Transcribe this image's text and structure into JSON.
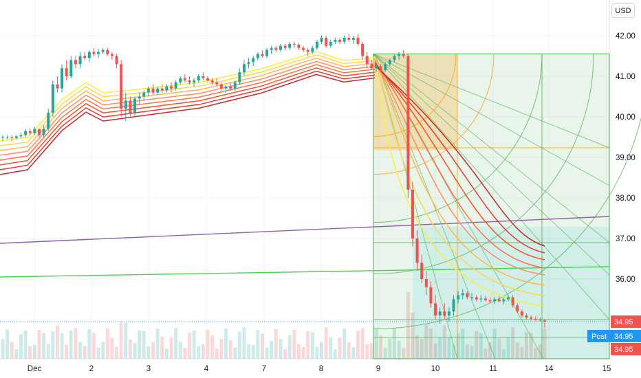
{
  "currency": "USD",
  "post_label": "Post",
  "colors": {
    "up": "#26a69a",
    "down": "#ef5350",
    "purple_line": "#8e5fa8",
    "green_line": "#47d34d",
    "post_tag": "#2196f3",
    "price_tag": "#ef5350"
  },
  "chart_data": {
    "type": "candlestick",
    "y_range": [
      33.7,
      42.6
    ],
    "y_ticks": [
      "42.00",
      "41.00",
      "40.00",
      "39.00",
      "38.00",
      "37.00",
      "36.00"
    ],
    "x_ticks": [
      "Dec",
      "2",
      "3",
      "4",
      "7",
      "8",
      "9",
      "10",
      "11",
      "14",
      "15"
    ],
    "price_tags": [
      "34.95",
      "34.95",
      "34.95"
    ],
    "last_price": 34.95,
    "price_candles": [
      [
        39.5,
        39.55,
        39.4,
        39.5
      ],
      [
        39.5,
        39.55,
        39.45,
        39.5
      ],
      [
        39.5,
        39.55,
        39.4,
        39.48
      ],
      [
        39.48,
        39.55,
        39.45,
        39.52
      ],
      [
        39.52,
        39.6,
        39.48,
        39.55
      ],
      [
        39.55,
        39.7,
        39.5,
        39.65
      ],
      [
        39.65,
        39.72,
        39.55,
        39.6
      ],
      [
        39.6,
        39.75,
        39.55,
        39.7
      ],
      [
        39.7,
        39.68,
        39.5,
        39.55
      ],
      [
        39.55,
        39.8,
        39.5,
        39.7
      ],
      [
        39.7,
        40.2,
        39.65,
        40.1
      ],
      [
        40.1,
        40.9,
        40.0,
        40.8
      ],
      [
        40.8,
        41.0,
        40.6,
        40.7
      ],
      [
        40.7,
        41.3,
        40.6,
        41.2
      ],
      [
        41.2,
        41.4,
        40.9,
        41.0
      ],
      [
        41.0,
        41.5,
        40.95,
        41.4
      ],
      [
        41.4,
        41.5,
        41.2,
        41.3
      ],
      [
        41.3,
        41.6,
        41.2,
        41.5
      ],
      [
        41.5,
        41.6,
        41.4,
        41.45
      ],
      [
        41.45,
        41.65,
        41.35,
        41.6
      ],
      [
        41.6,
        41.7,
        41.5,
        41.55
      ],
      [
        41.55,
        41.68,
        41.45,
        41.6
      ],
      [
        41.6,
        41.7,
        41.55,
        41.65
      ],
      [
        41.65,
        41.7,
        41.5,
        41.55
      ],
      [
        41.55,
        41.6,
        41.4,
        41.5
      ],
      [
        41.5,
        41.55,
        41.2,
        41.3
      ],
      [
        41.3,
        41.4,
        40.0,
        40.2
      ],
      [
        40.2,
        40.6,
        39.9,
        40.4
      ],
      [
        40.4,
        40.5,
        40.0,
        40.1
      ],
      [
        40.1,
        40.5,
        40.0,
        40.45
      ],
      [
        40.45,
        40.6,
        40.3,
        40.5
      ],
      [
        40.5,
        40.65,
        40.4,
        40.6
      ],
      [
        40.6,
        40.75,
        40.5,
        40.7
      ],
      [
        40.7,
        40.8,
        40.55,
        40.6
      ],
      [
        40.6,
        40.75,
        40.55,
        40.7
      ],
      [
        40.7,
        40.8,
        40.6,
        40.65
      ],
      [
        40.65,
        40.8,
        40.6,
        40.75
      ],
      [
        40.75,
        40.85,
        40.6,
        40.7
      ],
      [
        40.7,
        40.9,
        40.65,
        40.85
      ],
      [
        40.85,
        41.0,
        40.8,
        40.95
      ],
      [
        40.95,
        41.05,
        40.85,
        40.9
      ],
      [
        40.9,
        41.0,
        40.8,
        40.85
      ],
      [
        40.85,
        40.95,
        40.75,
        40.9
      ],
      [
        40.9,
        41.05,
        40.85,
        41.0
      ],
      [
        41.0,
        41.1,
        40.9,
        40.95
      ],
      [
        40.95,
        41.0,
        40.85,
        40.9
      ],
      [
        40.9,
        40.95,
        40.8,
        40.85
      ],
      [
        40.85,
        40.95,
        40.75,
        40.8
      ],
      [
        40.8,
        40.85,
        40.65,
        40.7
      ],
      [
        40.7,
        40.8,
        40.6,
        40.75
      ],
      [
        40.75,
        40.85,
        40.65,
        40.7
      ],
      [
        40.7,
        40.9,
        40.65,
        40.85
      ],
      [
        40.85,
        41.2,
        40.8,
        41.1
      ],
      [
        41.1,
        41.4,
        41.0,
        41.3
      ],
      [
        41.3,
        41.45,
        41.2,
        41.35
      ],
      [
        41.35,
        41.5,
        41.25,
        41.45
      ],
      [
        41.45,
        41.6,
        41.4,
        41.55
      ],
      [
        41.55,
        41.65,
        41.45,
        41.5
      ],
      [
        41.5,
        41.7,
        41.45,
        41.65
      ],
      [
        41.65,
        41.75,
        41.55,
        41.7
      ],
      [
        41.7,
        41.75,
        41.6,
        41.65
      ],
      [
        41.65,
        41.8,
        41.6,
        41.75
      ],
      [
        41.75,
        41.8,
        41.65,
        41.7
      ],
      [
        41.7,
        41.85,
        41.65,
        41.8
      ],
      [
        41.8,
        41.85,
        41.7,
        41.78
      ],
      [
        41.78,
        41.82,
        41.65,
        41.7
      ],
      [
        41.7,
        41.75,
        41.6,
        41.65
      ],
      [
        41.65,
        41.7,
        41.5,
        41.6
      ],
      [
        41.6,
        41.75,
        41.55,
        41.7
      ],
      [
        41.7,
        41.9,
        41.65,
        41.85
      ],
      [
        41.85,
        42.0,
        41.8,
        41.95
      ],
      [
        41.95,
        42.0,
        41.7,
        41.75
      ],
      [
        41.75,
        41.9,
        41.7,
        41.85
      ],
      [
        41.85,
        41.95,
        41.8,
        41.9
      ],
      [
        41.9,
        41.95,
        41.8,
        41.85
      ],
      [
        41.85,
        42.0,
        41.8,
        41.95
      ],
      [
        41.95,
        42.05,
        41.85,
        41.9
      ],
      [
        41.9,
        42.0,
        41.8,
        41.95
      ],
      [
        41.95,
        42.05,
        41.75,
        41.8
      ],
      [
        41.8,
        41.85,
        41.4,
        41.5
      ],
      [
        41.5,
        41.6,
        41.2,
        41.3
      ],
      [
        41.3,
        41.4,
        41.15,
        41.2
      ],
      [
        41.2,
        41.3,
        41.1,
        41.25
      ],
      [
        41.25,
        41.3,
        41.1,
        41.15
      ],
      [
        41.15,
        41.35,
        41.1,
        41.3
      ],
      [
        41.3,
        41.45,
        41.25,
        41.4
      ],
      [
        41.4,
        41.55,
        41.35,
        41.5
      ],
      [
        41.5,
        41.6,
        41.4,
        41.55
      ],
      [
        41.55,
        41.65,
        41.45,
        41.5
      ],
      [
        41.5,
        41.55,
        38.0,
        38.2
      ],
      [
        38.2,
        38.4,
        36.8,
        37.0
      ],
      [
        37.0,
        37.2,
        36.2,
        36.4
      ],
      [
        36.4,
        36.6,
        35.9,
        36.0
      ],
      [
        36.0,
        36.2,
        35.6,
        35.8
      ],
      [
        35.8,
        35.95,
        35.3,
        35.4
      ],
      [
        35.4,
        35.6,
        35.0,
        35.1
      ],
      [
        35.1,
        35.3,
        34.9,
        35.2
      ],
      [
        35.2,
        35.4,
        35.0,
        35.1
      ],
      [
        35.1,
        35.3,
        34.95,
        35.2
      ],
      [
        35.2,
        35.6,
        35.1,
        35.5
      ],
      [
        35.5,
        35.7,
        35.4,
        35.6
      ],
      [
        35.6,
        35.75,
        35.5,
        35.65
      ],
      [
        35.65,
        35.7,
        35.5,
        35.55
      ],
      [
        35.55,
        35.65,
        35.45,
        35.55
      ],
      [
        35.55,
        35.6,
        35.45,
        35.5
      ],
      [
        35.5,
        35.6,
        35.42,
        35.52
      ],
      [
        35.52,
        35.58,
        35.45,
        35.48
      ],
      [
        35.48,
        35.55,
        35.4,
        35.45
      ],
      [
        35.45,
        35.55,
        35.38,
        35.5
      ],
      [
        35.5,
        35.58,
        35.42,
        35.45
      ],
      [
        35.45,
        35.55,
        35.38,
        35.5
      ],
      [
        35.5,
        35.6,
        35.45,
        35.55
      ],
      [
        35.55,
        35.6,
        35.3,
        35.35
      ],
      [
        35.35,
        35.4,
        35.15,
        35.2
      ],
      [
        35.2,
        35.25,
        35.05,
        35.1
      ],
      [
        35.1,
        35.15,
        35.0,
        35.05
      ],
      [
        35.05,
        35.1,
        34.98,
        35.02
      ],
      [
        35.02,
        35.08,
        34.96,
        35.0
      ],
      [
        35.0,
        35.05,
        34.95,
        34.98
      ],
      [
        34.98,
        35.02,
        34.8,
        34.95
      ]
    ]
  }
}
